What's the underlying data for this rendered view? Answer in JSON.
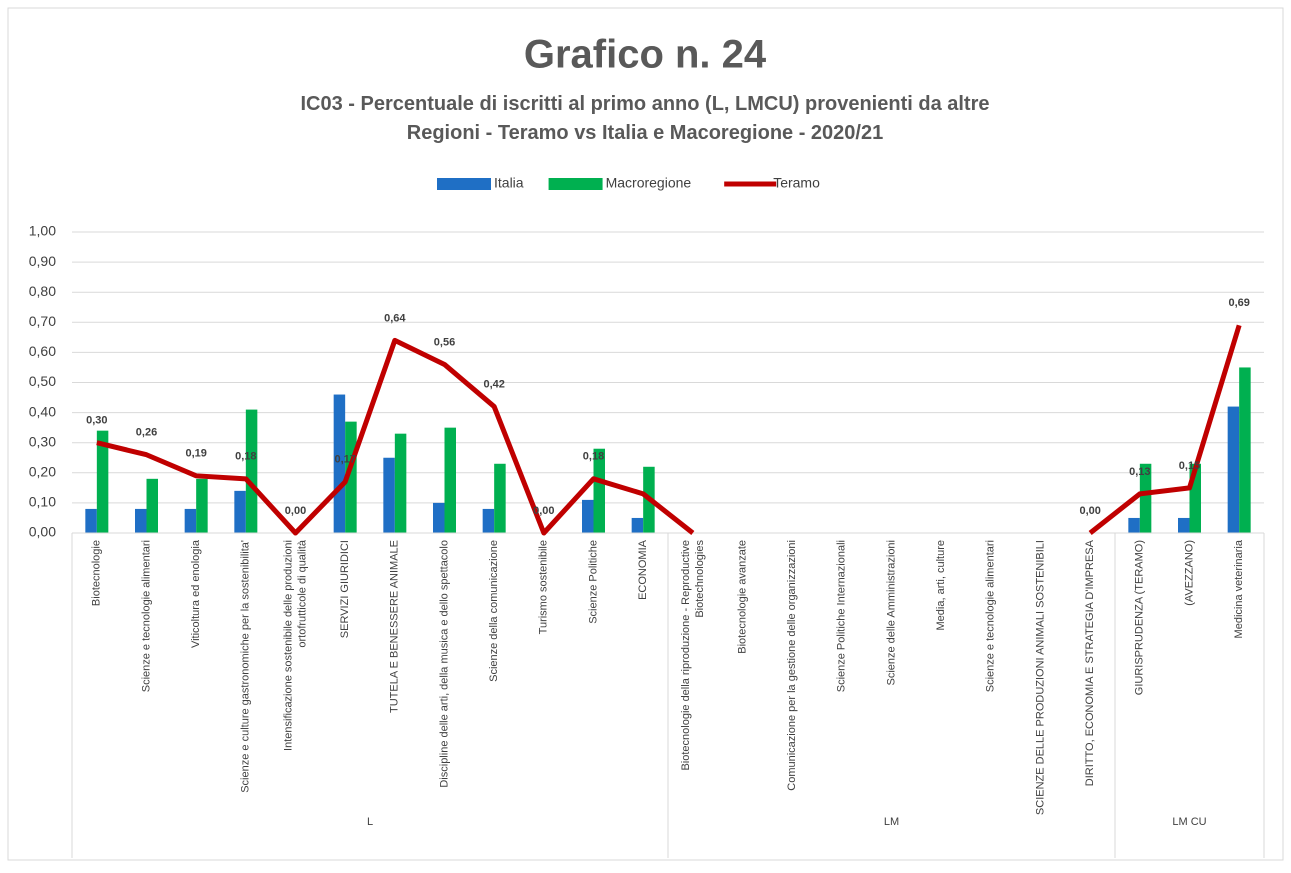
{
  "chart_data": {
    "type": "bar",
    "title": "Grafico n. 24",
    "subtitle": "IC03 - Percentuale di iscritti al primo anno (L, LMCU) provenienti da altre\nRegioni - Teramo vs Italia e Macoregione - 2020/21",
    "categories": [
      "Biotecnologie",
      "Scienze e tecnologie alimentari",
      "Viticoltura ed enologia",
      "Scienze e culture gastronomiche per la sostenibilita'",
      "Intensificazione sostenibile delle produzioni\nortofrutticole di qualità",
      "SERVIZI GIURIDICI",
      "TUTELA E BENESSERE ANIMALE",
      "Discipline delle arti, della musica e dello spettacolo",
      "Scienze della comunicazione",
      "Turismo sostenibile",
      "Scienze Politiche",
      "ECONOMIA",
      "Biotecnologie della riproduzione - Reproductive\nBiotechnologies",
      "Biotecnologie avanzate",
      "Comunicazione per la gestione delle organizzazioni",
      "Scienze Politiche  Internazionali",
      "Scienze delle Amministrazioni",
      "Media, arti, culture",
      "Scienze e tecnologie alimentari",
      "SCIENZE DELLE PRODUZIONI ANIMALI SOSTENIBILI",
      "DIRITTO, ECONOMIA E STRATEGIA D'IMPRESA",
      "GIURISPRUDENZA (TERAMO)",
      "(AVEZZANO)",
      "Medicina veterinaria"
    ],
    "group_labels": [
      "L",
      "LM",
      "LM CU"
    ],
    "group_sizes": [
      12,
      9,
      3
    ],
    "series": [
      {
        "name": "Italia",
        "color": "#1f6fc5",
        "values": [
          0.08,
          0.08,
          0.08,
          0.14,
          null,
          0.46,
          0.25,
          0.1,
          0.08,
          null,
          0.11,
          0.05,
          null,
          null,
          null,
          null,
          null,
          null,
          null,
          null,
          null,
          0.05,
          0.05,
          0.42
        ]
      },
      {
        "name": "Macroregione",
        "color": "#00b050",
        "values": [
          0.34,
          0.18,
          0.18,
          0.41,
          null,
          0.37,
          0.33,
          0.35,
          0.23,
          null,
          0.28,
          0.22,
          null,
          null,
          null,
          null,
          null,
          null,
          null,
          null,
          null,
          0.23,
          0.23,
          0.55
        ]
      },
      {
        "name": "Teramo",
        "type": "line",
        "color": "#c00000",
        "values": [
          0.3,
          0.26,
          0.19,
          0.18,
          0.0,
          0.17,
          0.64,
          0.56,
          0.42,
          0.0,
          0.18,
          0.13,
          0.0,
          null,
          null,
          null,
          null,
          null,
          null,
          null,
          0.0,
          0.13,
          0.15,
          0.69
        ],
        "value_labels": [
          "0,30",
          "0,26",
          "0,19",
          "0,18",
          "0,00",
          "0,17",
          "0,64",
          "0,56",
          "0,42",
          "0,00",
          "0,18",
          null,
          null,
          null,
          null,
          null,
          null,
          null,
          null,
          null,
          "0,00",
          "0,13",
          "0,15",
          "0,69"
        ]
      }
    ],
    "ylim": [
      0,
      1
    ],
    "yticks": [
      {
        "value": 0,
        "label": "0,00"
      },
      {
        "value": 0.1,
        "label": "0,10"
      },
      {
        "value": 0.2,
        "label": "0,20"
      },
      {
        "value": 0.3,
        "label": "0,30"
      },
      {
        "value": 0.4,
        "label": "0,40"
      },
      {
        "value": 0.5,
        "label": "0,50"
      },
      {
        "value": 0.6,
        "label": "0,60"
      },
      {
        "value": 0.7,
        "label": "0,70"
      },
      {
        "value": 0.8,
        "label": "0,80"
      },
      {
        "value": 0.9,
        "label": "0,90"
      },
      {
        "value": 1,
        "label": "1,00"
      }
    ],
    "grid": true,
    "legend": "top"
  }
}
